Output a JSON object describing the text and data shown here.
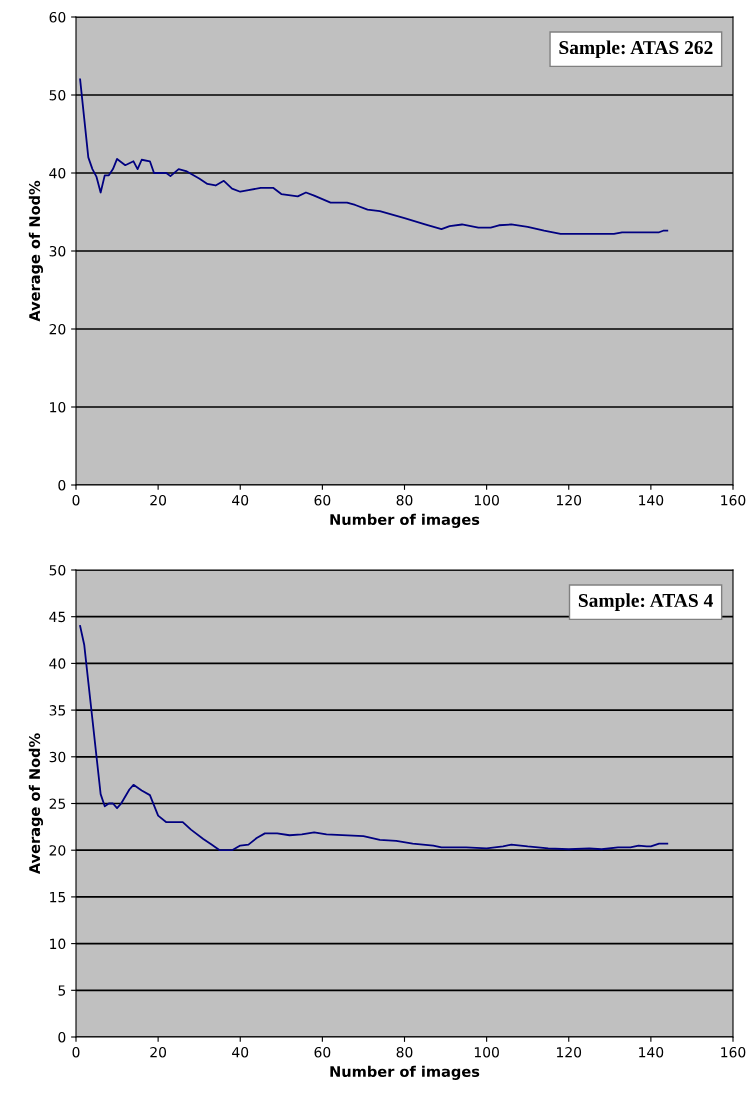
{
  "chart_data": [
    {
      "type": "line",
      "title": "Sample: ATAS 262",
      "xlabel": "Number of images",
      "ylabel": "Average of Nod%",
      "xlim": [
        0,
        160
      ],
      "xticks": [
        0,
        20,
        40,
        60,
        80,
        100,
        120,
        140,
        160
      ],
      "ylim": [
        0,
        60
      ],
      "yticks": [
        0,
        10,
        20,
        30,
        40,
        50,
        60
      ],
      "grid": "y",
      "series": [
        {
          "color": "#000080",
          "x": [
            1,
            2,
            3,
            4,
            5,
            6,
            7,
            8,
            9,
            10,
            12,
            14,
            15,
            16,
            18,
            19,
            22,
            23,
            25,
            27,
            30,
            32,
            34,
            36,
            38,
            40,
            42,
            45,
            48,
            50,
            54,
            56,
            58,
            62,
            66,
            68,
            71,
            74,
            80,
            85,
            89,
            91,
            94,
            98,
            101,
            103,
            106,
            110,
            114,
            118,
            125,
            131,
            133,
            142,
            143,
            144
          ],
          "values": [
            52,
            47,
            42,
            40.5,
            39.5,
            37.5,
            39.7,
            39.7,
            40.5,
            41.8,
            41,
            41.5,
            40.5,
            41.7,
            41.5,
            40,
            40,
            39.6,
            40.5,
            40.2,
            39.3,
            38.6,
            38.4,
            39,
            38,
            37.6,
            37.8,
            38.1,
            38.1,
            37.3,
            37,
            37.5,
            37.1,
            36.2,
            36.2,
            35.9,
            35.3,
            35.1,
            34.2,
            33.4,
            32.8,
            33.2,
            33.4,
            33,
            33,
            33.3,
            33.4,
            33.1,
            32.6,
            32.2,
            32.2,
            32.2,
            32.4,
            32.4,
            32.6,
            32.6
          ]
        }
      ]
    },
    {
      "type": "line",
      "title": "Sample: ATAS 4",
      "xlabel": "Number of images",
      "ylabel": "Average of Nod%",
      "xlim": [
        0,
        160
      ],
      "xticks": [
        0,
        20,
        40,
        60,
        80,
        100,
        120,
        140,
        160
      ],
      "ylim": [
        0,
        50
      ],
      "yticks": [
        0,
        5,
        10,
        15,
        20,
        25,
        30,
        35,
        40,
        45,
        50
      ],
      "grid": "y",
      "series": [
        {
          "color": "#000080",
          "x": [
            1,
            2,
            3,
            4,
            5,
            6,
            7,
            8,
            9,
            10,
            11,
            13,
            14,
            16,
            18,
            19,
            20,
            22,
            24,
            26,
            28,
            31,
            33,
            35,
            38,
            40,
            42,
            44,
            46,
            49,
            52,
            55,
            58,
            61,
            70,
            74,
            78,
            82,
            87,
            89,
            95,
            100,
            104,
            106,
            110,
            115,
            120,
            125,
            128,
            132,
            135,
            137,
            139,
            140,
            142,
            144
          ],
          "values": [
            44,
            42,
            38,
            34,
            30,
            26,
            24.7,
            25,
            25,
            24.5,
            25,
            26.5,
            27,
            26.4,
            25.9,
            24.8,
            23.7,
            23,
            23,
            23,
            22.2,
            21.2,
            20.6,
            20,
            20,
            20.5,
            20.6,
            21.3,
            21.8,
            21.8,
            21.6,
            21.7,
            21.9,
            21.7,
            21.5,
            21.1,
            21,
            20.7,
            20.5,
            20.3,
            20.3,
            20.2,
            20.4,
            20.6,
            20.4,
            20.2,
            20.1,
            20.2,
            20.1,
            20.3,
            20.3,
            20.5,
            20.4,
            20.4,
            20.7,
            20.7
          ]
        }
      ]
    }
  ]
}
